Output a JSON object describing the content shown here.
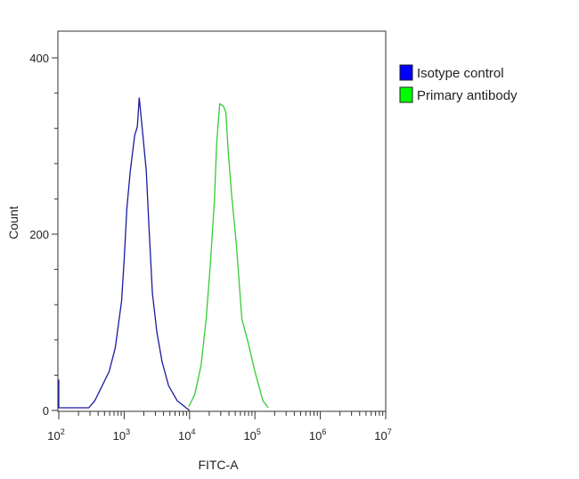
{
  "chart_data": {
    "type": "line",
    "title": "",
    "xlabel": "FITC-A",
    "ylabel": "Count",
    "x_scale": "log",
    "xlim": [
      100,
      10000000
    ],
    "ylim": [
      0,
      430
    ],
    "x_ticks": [
      {
        "value": 100,
        "base": "10",
        "exp": "2"
      },
      {
        "value": 1000,
        "base": "10",
        "exp": "3"
      },
      {
        "value": 10000,
        "base": "10",
        "exp": "4"
      },
      {
        "value": 100000,
        "base": "10",
        "exp": "5"
      },
      {
        "value": 1000000,
        "base": "10",
        "exp": "6"
      },
      {
        "value": 10000000,
        "base": "10",
        "exp": "7"
      }
    ],
    "y_ticks": [
      0,
      200,
      400
    ],
    "y_minor_step": 40,
    "grid": false,
    "legend_placement": "right",
    "series": [
      {
        "name": "Isotype control",
        "color": "#0000ff",
        "stroke": "#1a1aa0",
        "x": [
          100,
          100,
          110,
          288,
          355,
          589,
          731,
          912,
          1000,
          1100,
          1240,
          1450,
          1590,
          1700,
          1860,
          2180,
          2400,
          2700,
          3160,
          3800,
          4780,
          6460,
          8840,
          10000
        ],
        "y": [
          35,
          3,
          3,
          3,
          11,
          44,
          71,
          124,
          171,
          229,
          272,
          312,
          322,
          355,
          325,
          272,
          207,
          133,
          89,
          55,
          28,
          11,
          3,
          0
        ]
      },
      {
        "name": "Primary antibody",
        "color": "#00ff00",
        "stroke": "#33cc33",
        "x": [
          9700,
          12000,
          15000,
          18000,
          21000,
          24000,
          26000,
          29000,
          33000,
          36000,
          39000,
          44000,
          52000,
          63000,
          78000,
          100000,
          132000,
          160000
        ],
        "y": [
          4,
          18,
          51,
          104,
          171,
          238,
          304,
          348,
          345,
          338,
          294,
          245,
          188,
          104,
          78,
          44,
          11,
          3
        ]
      }
    ]
  }
}
